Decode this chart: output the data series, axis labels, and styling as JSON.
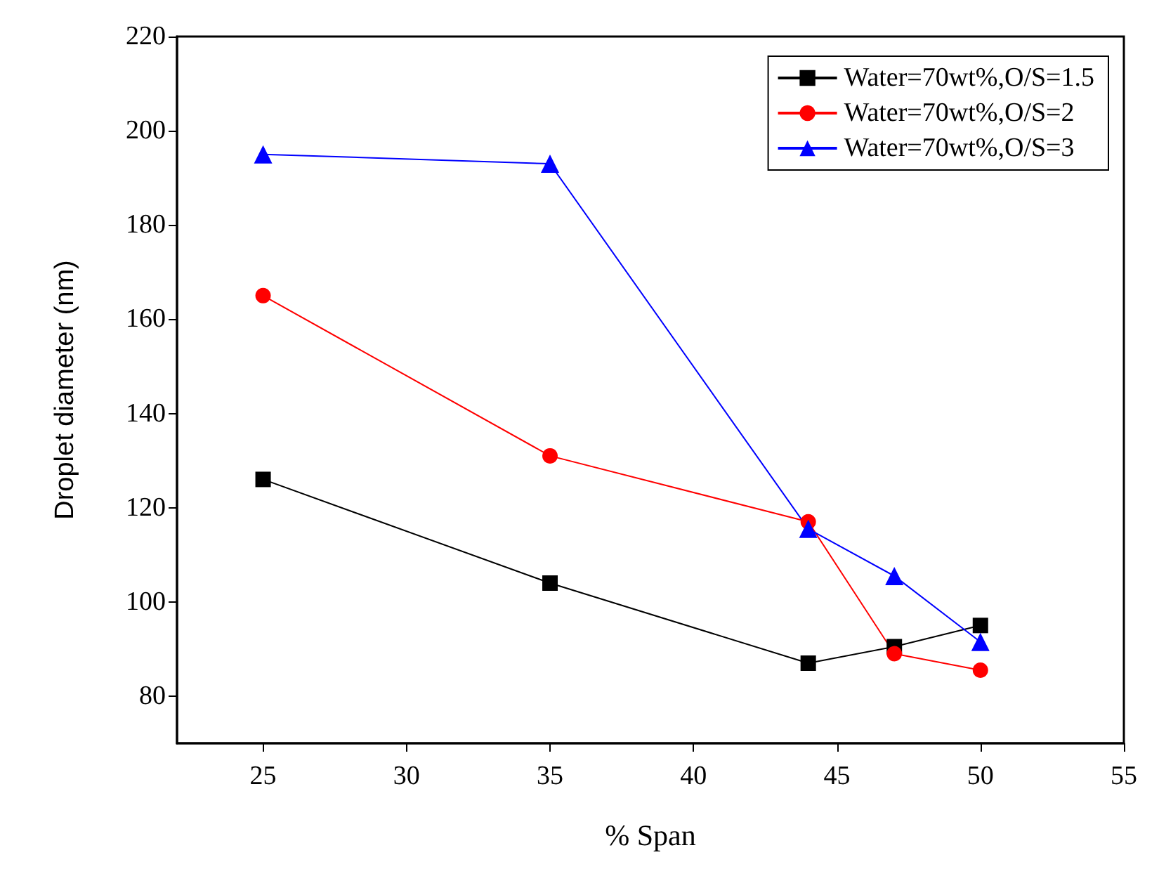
{
  "chart_data": {
    "type": "line",
    "xlabel": "% Span",
    "ylabel": "Droplet diameter (nm)",
    "x": [
      25,
      35,
      44,
      47,
      50
    ],
    "series": [
      {
        "name": "Water=70wt%,O/S=1.5",
        "color": "#000000",
        "marker": "square",
        "values": [
          126,
          104,
          87,
          90.5,
          95
        ]
      },
      {
        "name": "Water=70wt%,O/S=2",
        "color": "#ff0000",
        "marker": "circle",
        "values": [
          165,
          131,
          117,
          89,
          85.5
        ]
      },
      {
        "name": "Water=70wt%,O/S=3",
        "color": "#0000ff",
        "marker": "triangle",
        "values": [
          195,
          193,
          115.5,
          105.5,
          91.5
        ]
      }
    ],
    "xlim": [
      22,
      55
    ],
    "xticks": [
      25,
      30,
      35,
      40,
      45,
      50,
      55
    ],
    "ylim": [
      70,
      220
    ],
    "yticks": [
      80,
      100,
      120,
      140,
      160,
      180,
      200,
      220
    ],
    "grid": false,
    "legend": "top right"
  }
}
